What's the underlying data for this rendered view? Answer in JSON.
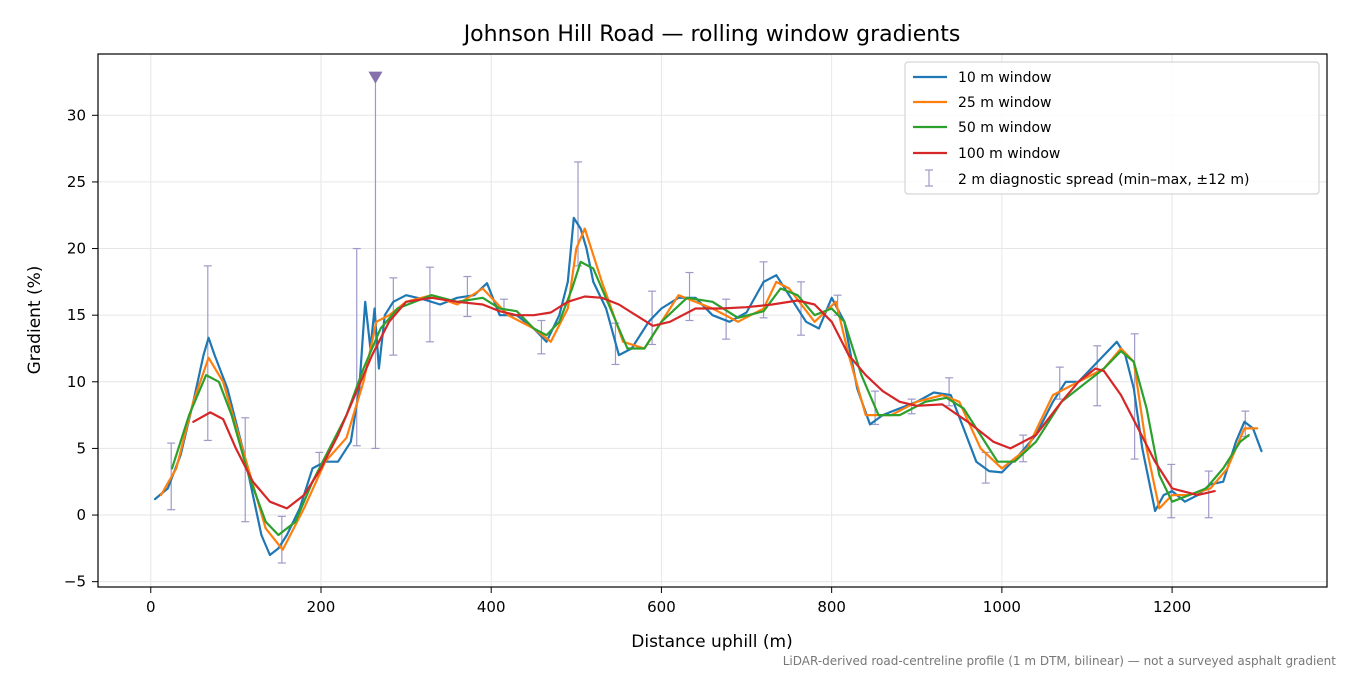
{
  "chart_data": {
    "type": "line",
    "title": "Johnson Hill Road — rolling window gradients",
    "xlabel": "Distance uphill (m)",
    "ylabel": "Gradient (%)",
    "footnote": "LiDAR-derived road-centreline profile (1 m DTM, bilinear) — not a surveyed asphalt gradient",
    "xlim": [
      -62,
      1382
    ],
    "ylim": [
      -5.4,
      34.6
    ],
    "xticks": [
      0,
      200,
      400,
      600,
      800,
      1000,
      1200
    ],
    "yticks": [
      -5,
      0,
      5,
      10,
      15,
      20,
      25,
      30
    ],
    "grid": true,
    "legend_position": "top-right",
    "series": [
      {
        "name": "10 m window",
        "color": "#1f77b4",
        "x": [
          5,
          20,
          35,
          50,
          62,
          68,
          75,
          90,
          110,
          130,
          140,
          150,
          160,
          175,
          190,
          205,
          220,
          235,
          245,
          252,
          258,
          263,
          268,
          275,
          285,
          300,
          320,
          340,
          360,
          380,
          395,
          410,
          430,
          450,
          465,
          480,
          490,
          497,
          505,
          512,
          520,
          535,
          550,
          565,
          585,
          600,
          620,
          640,
          660,
          680,
          700,
          720,
          735,
          750,
          770,
          785,
          800,
          815,
          830,
          845,
          860,
          880,
          900,
          920,
          940,
          955,
          970,
          985,
          1000,
          1020,
          1040,
          1060,
          1075,
          1090,
          1105,
          1120,
          1135,
          1145,
          1155,
          1165,
          1180,
          1190,
          1200,
          1215,
          1230,
          1245,
          1260,
          1275,
          1285,
          1295,
          1305
        ],
        "y": [
          1.2,
          2.0,
          4.5,
          8.5,
          12.0,
          13.3,
          12.0,
          9.5,
          4.5,
          -1.5,
          -3.0,
          -2.5,
          -1.5,
          0.5,
          3.5,
          4.0,
          4.0,
          5.5,
          9.5,
          16.0,
          12.5,
          15.5,
          11.0,
          15.0,
          16.0,
          16.5,
          16.2,
          15.8,
          16.3,
          16.5,
          17.4,
          15.0,
          15.0,
          14.0,
          13.0,
          15.0,
          17.5,
          22.3,
          21.5,
          20.0,
          17.5,
          15.5,
          12.0,
          12.5,
          14.5,
          15.5,
          16.3,
          16.3,
          15.0,
          14.5,
          15.2,
          17.5,
          18.0,
          16.5,
          14.5,
          14.0,
          16.3,
          14.5,
          9.5,
          6.8,
          7.5,
          8.0,
          8.5,
          9.2,
          9.0,
          6.5,
          4.0,
          3.3,
          3.2,
          4.5,
          6.0,
          8.5,
          10.0,
          10.0,
          11.0,
          12.0,
          13.0,
          12.0,
          9.5,
          5.0,
          0.3,
          1.5,
          1.8,
          1.0,
          1.5,
          2.3,
          2.5,
          5.5,
          7.0,
          6.5,
          4.8
        ]
      },
      {
        "name": "25 m window",
        "color": "#ff7f0e",
        "x": [
          12,
          30,
          50,
          68,
          85,
          110,
          135,
          155,
          180,
          205,
          230,
          250,
          265,
          280,
          300,
          330,
          360,
          390,
          420,
          450,
          470,
          490,
          500,
          510,
          530,
          555,
          580,
          620,
          660,
          690,
          720,
          735,
          750,
          780,
          805,
          820,
          840,
          870,
          900,
          930,
          950,
          975,
          1000,
          1030,
          1060,
          1090,
          1120,
          1140,
          1155,
          1170,
          1185,
          1200,
          1220,
          1245,
          1265,
          1285,
          1300
        ],
        "y": [
          1.5,
          3.5,
          8.5,
          11.8,
          10.0,
          4.5,
          -1.0,
          -2.6,
          0.5,
          4.0,
          5.8,
          10.0,
          14.5,
          15.0,
          16.0,
          16.5,
          15.8,
          17.0,
          15.0,
          14.0,
          13.0,
          15.5,
          20.0,
          21.5,
          17.5,
          13.0,
          12.5,
          16.5,
          15.5,
          14.5,
          15.5,
          17.5,
          17.0,
          14.5,
          16.0,
          12.0,
          7.5,
          7.5,
          8.5,
          9.0,
          8.5,
          5.0,
          3.5,
          5.0,
          9.0,
          10.0,
          11.0,
          12.5,
          11.5,
          5.0,
          0.5,
          1.5,
          1.5,
          2.0,
          3.5,
          6.5,
          6.5
        ]
      },
      {
        "name": "50 m window",
        "color": "#2ca02c",
        "x": [
          25,
          45,
          65,
          80,
          95,
          115,
          135,
          150,
          170,
          190,
          210,
          230,
          250,
          270,
          290,
          330,
          360,
          390,
          410,
          430,
          450,
          465,
          480,
          495,
          505,
          520,
          540,
          560,
          580,
          600,
          630,
          660,
          690,
          720,
          740,
          760,
          780,
          800,
          815,
          835,
          855,
          880,
          910,
          935,
          955,
          975,
          995,
          1015,
          1040,
          1070,
          1100,
          1120,
          1140,
          1155,
          1170,
          1185,
          1200,
          1220,
          1240,
          1260,
          1280,
          1290
        ],
        "y": [
          3.5,
          7.5,
          10.5,
          10.0,
          7.5,
          3.0,
          -0.5,
          -1.5,
          -0.5,
          2.5,
          5.0,
          7.5,
          11.0,
          14.0,
          15.5,
          16.5,
          16.0,
          16.3,
          15.5,
          15.3,
          14.0,
          13.5,
          14.5,
          17.0,
          19.0,
          18.5,
          15.5,
          12.5,
          12.5,
          14.5,
          16.3,
          16.0,
          14.8,
          15.3,
          17.0,
          16.5,
          15.0,
          15.5,
          14.5,
          10.5,
          7.5,
          7.5,
          8.5,
          8.8,
          8.0,
          6.0,
          4.0,
          4.0,
          5.5,
          8.5,
          10.0,
          11.0,
          12.3,
          11.5,
          8.0,
          3.0,
          1.0,
          1.5,
          2.0,
          3.5,
          5.5,
          6.0
        ]
      },
      {
        "name": "100 m window",
        "color": "#d62728",
        "x": [
          50,
          70,
          85,
          100,
          120,
          140,
          160,
          180,
          200,
          220,
          240,
          260,
          280,
          300,
          330,
          360,
          390,
          410,
          430,
          450,
          470,
          490,
          510,
          530,
          550,
          570,
          590,
          610,
          640,
          670,
          700,
          730,
          760,
          780,
          800,
          820,
          840,
          860,
          880,
          900,
          930,
          960,
          990,
          1010,
          1040,
          1070,
          1090,
          1110,
          1120,
          1140,
          1160,
          1180,
          1200,
          1230,
          1250
        ],
        "y": [
          7.0,
          7.7,
          7.2,
          5.0,
          2.5,
          1.0,
          0.5,
          1.5,
          3.5,
          6.0,
          9.0,
          12.0,
          14.5,
          16.0,
          16.3,
          16.0,
          15.8,
          15.3,
          15.0,
          15.0,
          15.2,
          16.0,
          16.4,
          16.3,
          15.8,
          15.0,
          14.2,
          14.5,
          15.5,
          15.5,
          15.6,
          15.8,
          16.1,
          15.8,
          14.5,
          12.0,
          10.5,
          9.3,
          8.5,
          8.2,
          8.3,
          7.0,
          5.5,
          5.0,
          6.0,
          8.5,
          10.0,
          11.0,
          10.8,
          9.0,
          6.5,
          4.0,
          2.0,
          1.5,
          1.8
        ]
      }
    ],
    "error_bars": {
      "name": "2 m diagnostic spread (min–max, ±12 m)",
      "color": "#9e9ac8",
      "points": [
        {
          "x": 24,
          "min": 0.4,
          "max": 5.4
        },
        {
          "x": 67,
          "min": 5.6,
          "max": 18.7
        },
        {
          "x": 111,
          "min": -0.5,
          "max": 7.3
        },
        {
          "x": 154,
          "min": -3.6,
          "max": -0.1
        },
        {
          "x": 198,
          "min": 3.7,
          "max": 4.7
        },
        {
          "x": 242,
          "min": 5.2,
          "max": 20.0
        },
        {
          "x": 264,
          "min": 5.0,
          "max": 32.9
        },
        {
          "x": 285,
          "min": 12.0,
          "max": 17.8
        },
        {
          "x": 328,
          "min": 13.0,
          "max": 18.6
        },
        {
          "x": 372,
          "min": 14.9,
          "max": 17.9
        },
        {
          "x": 415,
          "min": 15.0,
          "max": 16.2
        },
        {
          "x": 459,
          "min": 12.1,
          "max": 14.6
        },
        {
          "x": 502,
          "min": 18.7,
          "max": 26.5
        },
        {
          "x": 546,
          "min": 11.3,
          "max": 14.4
        },
        {
          "x": 589,
          "min": 12.8,
          "max": 16.8
        },
        {
          "x": 633,
          "min": 14.6,
          "max": 18.2
        },
        {
          "x": 676,
          "min": 13.2,
          "max": 16.2
        },
        {
          "x": 720,
          "min": 14.8,
          "max": 19.0
        },
        {
          "x": 764,
          "min": 13.5,
          "max": 17.5
        },
        {
          "x": 807,
          "min": 15.0,
          "max": 16.5
        },
        {
          "x": 851,
          "min": 6.8,
          "max": 9.3
        },
        {
          "x": 894,
          "min": 7.6,
          "max": 8.7
        },
        {
          "x": 938,
          "min": 8.2,
          "max": 10.3
        },
        {
          "x": 981,
          "min": 2.4,
          "max": 4.7
        },
        {
          "x": 1025,
          "min": 4.0,
          "max": 6.0
        },
        {
          "x": 1068,
          "min": 8.7,
          "max": 11.1
        },
        {
          "x": 1112,
          "min": 8.2,
          "max": 12.7
        },
        {
          "x": 1156,
          "min": 4.2,
          "max": 13.6
        },
        {
          "x": 1199,
          "min": -0.2,
          "max": 3.8
        },
        {
          "x": 1243,
          "min": -0.2,
          "max": 3.3
        },
        {
          "x": 1286,
          "min": 5.9,
          "max": 7.8
        }
      ],
      "clipped_marker": {
        "x": 264,
        "y": 32.9
      }
    }
  }
}
